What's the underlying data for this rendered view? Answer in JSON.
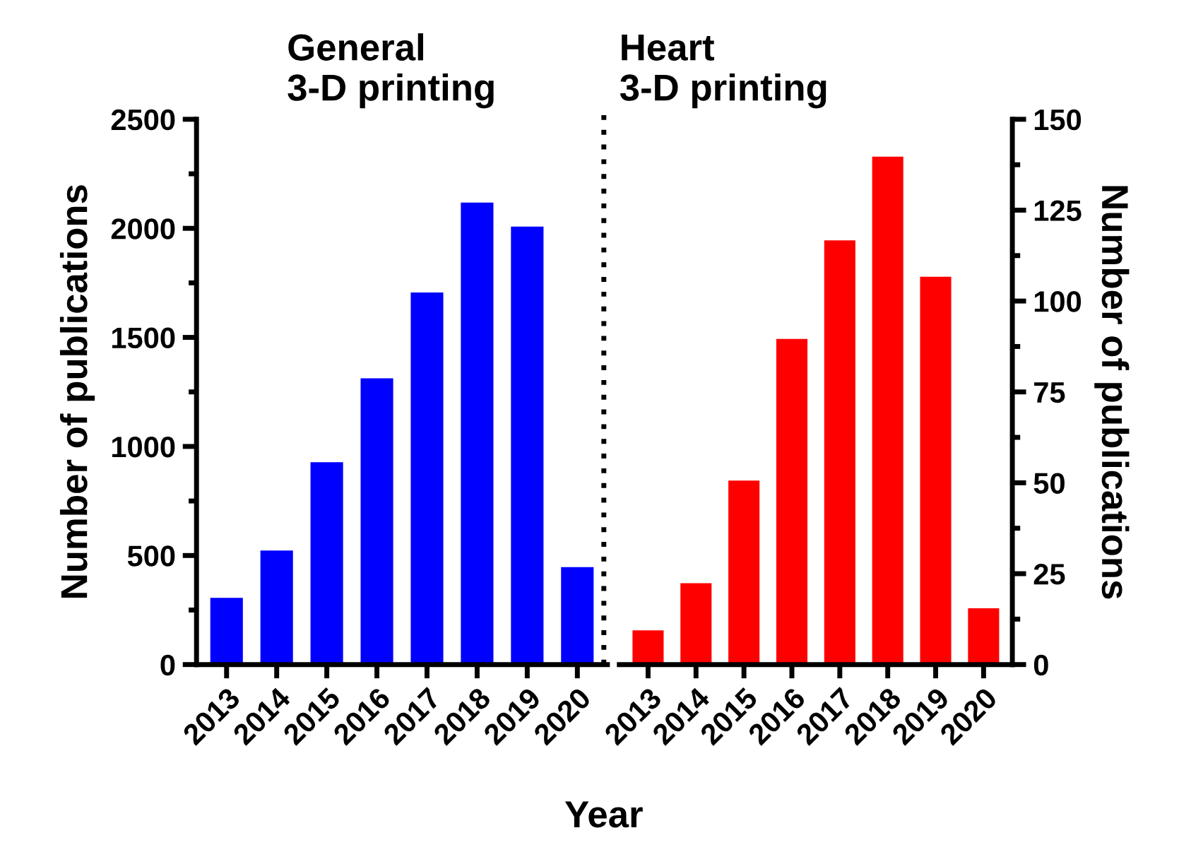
{
  "chart_data": [
    {
      "type": "bar",
      "title": "General\n3-D printing",
      "xlabel": "Year",
      "ylabel": "Number of publications",
      "categories": [
        "2013",
        "2014",
        "2015",
        "2016",
        "2017",
        "2018",
        "2019",
        "2020"
      ],
      "values": [
        306,
        523,
        928,
        1312,
        1706,
        2118,
        2008,
        447
      ],
      "color": "#0000ff",
      "ylim": [
        0,
        2500
      ],
      "yticks": [
        0,
        500,
        1000,
        1500,
        2000,
        2500
      ],
      "grid": false
    },
    {
      "type": "bar",
      "title": "Heart\n3-D printing",
      "ylabel": "Number of publications",
      "categories": [
        "2013",
        "2014",
        "2015",
        "2016",
        "2017",
        "2018",
        "2019",
        "2020"
      ],
      "values": [
        9.4,
        22.4,
        50.6,
        89.6,
        116.7,
        139.7,
        106.7,
        15.5
      ],
      "color": "#ff0000",
      "ylim": [
        0,
        150
      ],
      "yticks": [
        0,
        25,
        50,
        75,
        100,
        125,
        150
      ],
      "grid": false
    }
  ]
}
